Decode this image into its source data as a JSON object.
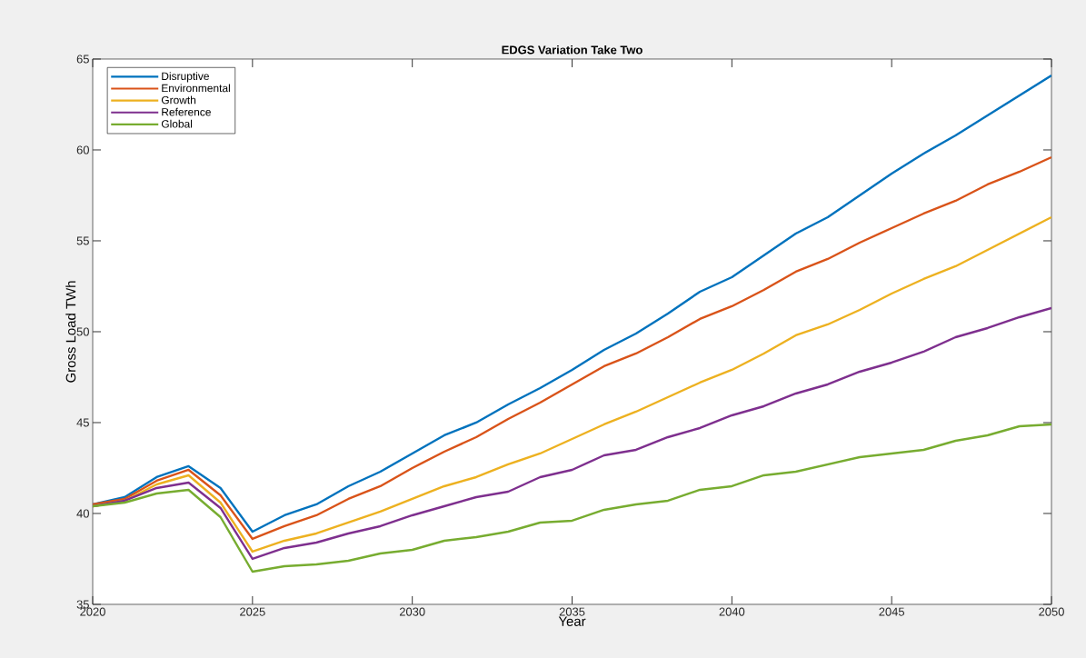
{
  "chart_data": {
    "type": "line",
    "title": "EDGS Variation Take Two",
    "xlabel": "Year",
    "ylabel": "Gross Load TWh",
    "x": [
      2020,
      2021,
      2022,
      2023,
      2024,
      2025,
      2026,
      2027,
      2028,
      2029,
      2030,
      2031,
      2032,
      2033,
      2034,
      2035,
      2036,
      2037,
      2038,
      2039,
      2040,
      2041,
      2042,
      2043,
      2044,
      2045,
      2046,
      2047,
      2048,
      2049,
      2050
    ],
    "series": [
      {
        "name": "Disruptive",
        "color": "#0072bd",
        "values": [
          40.5,
          40.9,
          42.0,
          42.6,
          41.4,
          39.0,
          39.9,
          40.5,
          41.5,
          42.3,
          43.3,
          44.3,
          45.0,
          46.0,
          46.9,
          47.9,
          49.0,
          49.9,
          51.0,
          52.2,
          53.0,
          54.2,
          55.4,
          56.3,
          57.5,
          58.7,
          59.8,
          60.8,
          61.9,
          63.0,
          64.1
        ]
      },
      {
        "name": "Environmental",
        "color": "#d95319",
        "values": [
          40.5,
          40.8,
          41.8,
          42.4,
          41.0,
          38.6,
          39.3,
          39.9,
          40.8,
          41.5,
          42.5,
          43.4,
          44.2,
          45.2,
          46.1,
          47.1,
          48.1,
          48.8,
          49.7,
          50.7,
          51.4,
          52.3,
          53.3,
          54.0,
          54.9,
          55.7,
          56.5,
          57.2,
          58.1,
          58.8,
          59.6
        ]
      },
      {
        "name": "Growth",
        "color": "#edb120",
        "values": [
          40.4,
          40.7,
          41.6,
          42.1,
          40.6,
          37.9,
          38.5,
          38.9,
          39.5,
          40.1,
          40.8,
          41.5,
          42.0,
          42.7,
          43.3,
          44.1,
          44.9,
          45.6,
          46.4,
          47.2,
          47.9,
          48.8,
          49.8,
          50.4,
          51.2,
          52.1,
          52.9,
          53.6,
          54.5,
          55.4,
          56.3
        ]
      },
      {
        "name": "Reference",
        "color": "#7e2f8e",
        "values": [
          40.4,
          40.7,
          41.4,
          41.7,
          40.3,
          37.5,
          38.1,
          38.4,
          38.9,
          39.3,
          39.9,
          40.4,
          40.9,
          41.2,
          42.0,
          42.4,
          43.2,
          43.5,
          44.2,
          44.7,
          45.4,
          45.9,
          46.6,
          47.1,
          47.8,
          48.3,
          48.9,
          49.7,
          50.2,
          50.8,
          51.3
        ]
      },
      {
        "name": "Global",
        "color": "#77ac30",
        "values": [
          40.4,
          40.6,
          41.1,
          41.3,
          39.8,
          36.8,
          37.1,
          37.2,
          37.4,
          37.8,
          38.0,
          38.5,
          38.7,
          39.0,
          39.5,
          39.6,
          40.2,
          40.5,
          40.7,
          41.3,
          41.5,
          42.1,
          42.3,
          42.7,
          43.1,
          43.3,
          43.5,
          44.0,
          44.3,
          44.8,
          44.9
        ]
      }
    ],
    "xlim": [
      2020,
      2050
    ],
    "ylim": [
      35,
      65
    ],
    "xticks": [
      2020,
      2025,
      2030,
      2035,
      2040,
      2045,
      2050
    ],
    "yticks": [
      35,
      40,
      45,
      50,
      55,
      60,
      65
    ],
    "grid": false,
    "legend": "top left",
    "marker": "none",
    "line_style": "solid"
  }
}
